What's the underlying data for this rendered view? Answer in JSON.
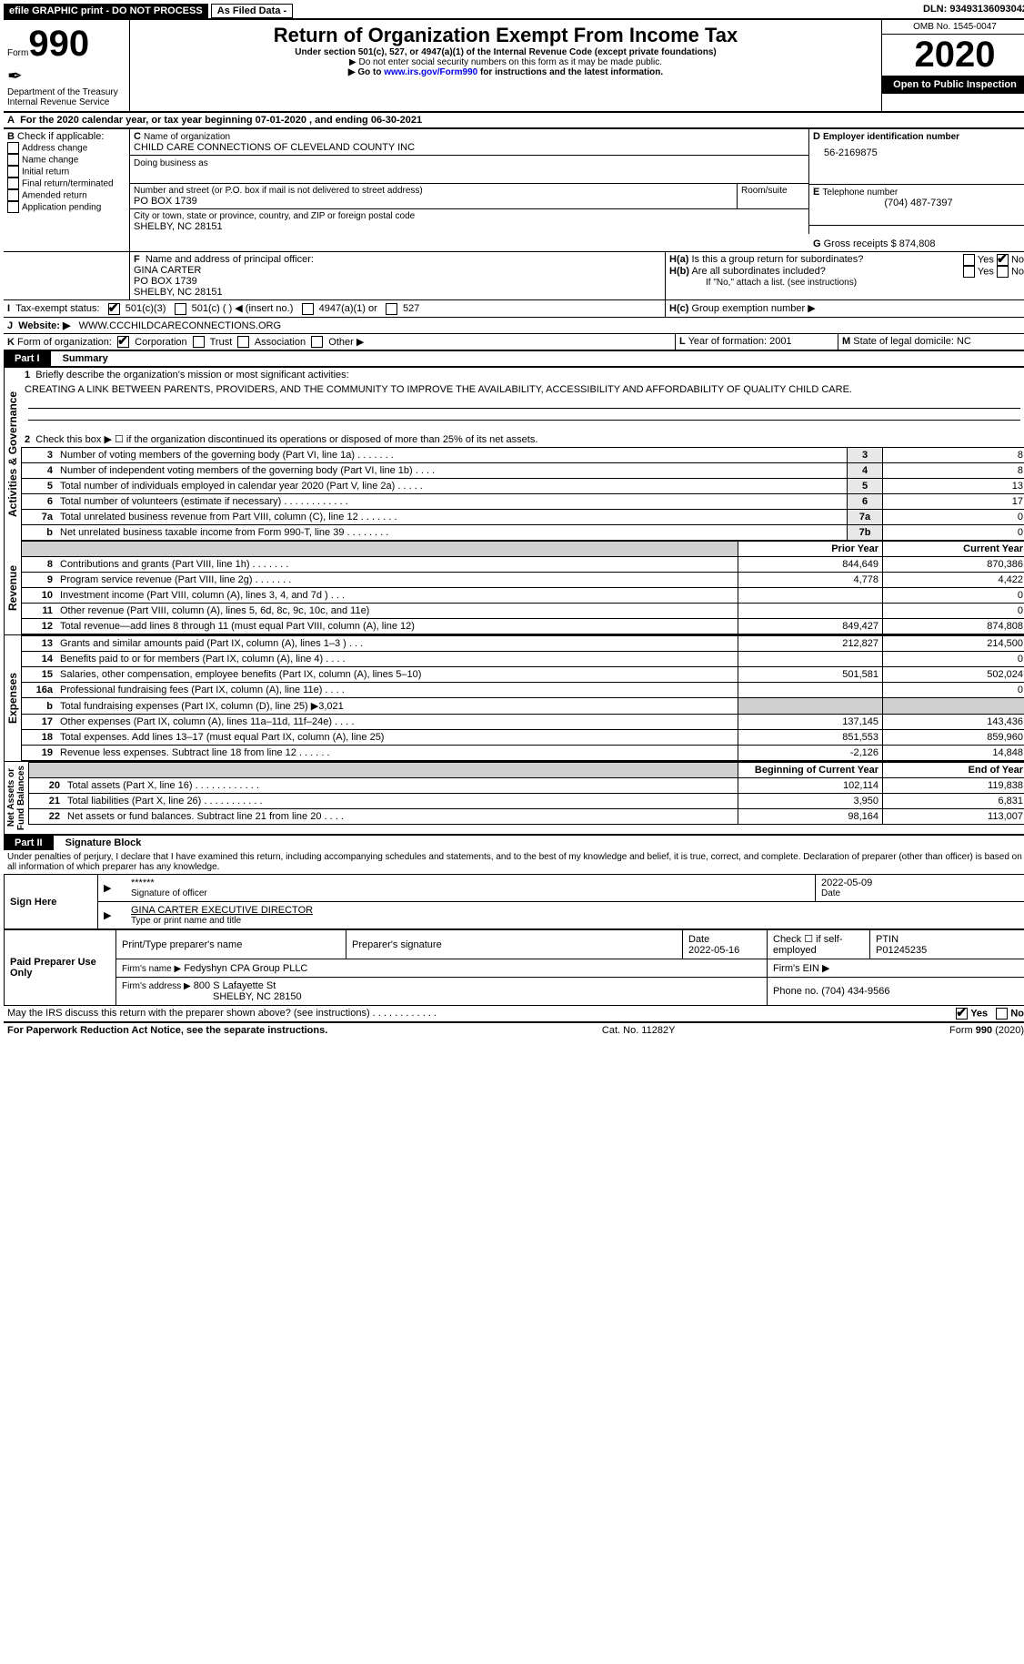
{
  "top": {
    "efile": "efile GRAPHIC print - DO NOT PROCESS",
    "asfiled": "As Filed Data -",
    "dln_label": "DLN:",
    "dln": "93493136093042"
  },
  "header": {
    "form_prefix": "Form",
    "form_no": "990",
    "dept": "Department of the Treasury\nInternal Revenue Service",
    "title": "Return of Organization Exempt From Income Tax",
    "sub1": "Under section 501(c), 527, or 4947(a)(1) of the Internal Revenue Code (except private foundations)",
    "sub2": "▶ Do not enter social security numbers on this form as it may be made public.",
    "sub3_pre": "▶ Go to ",
    "sub3_link": "www.irs.gov/Form990",
    "sub3_post": " for instructions and the latest information.",
    "omb": "OMB No. 1545-0047",
    "year": "2020",
    "inspect": "Open to Public Inspection"
  },
  "A": {
    "text": "For the 2020 calendar year, or tax year beginning 07-01-2020  , and ending 06-30-2021"
  },
  "B": {
    "label": "Check if applicable:",
    "items": [
      "Address change",
      "Name change",
      "Initial return",
      "Final return/terminated",
      "Amended return",
      "Application pending"
    ]
  },
  "C": {
    "name_label": "Name of organization",
    "name": "CHILD CARE CONNECTIONS OF CLEVELAND COUNTY INC",
    "dba_label": "Doing business as",
    "dba": "",
    "street_label": "Number and street (or P.O. box if mail is not delivered to street address)",
    "room_label": "Room/suite",
    "street": "PO BOX 1739",
    "city_label": "City or town, state or province, country, and ZIP or foreign postal code",
    "city": "SHELBY, NC  28151"
  },
  "D": {
    "label": "Employer identification number",
    "val": "56-2169875"
  },
  "E": {
    "label": "Telephone number",
    "val": "(704) 487-7397"
  },
  "G": {
    "label": "Gross receipts $",
    "val": "874,808"
  },
  "F": {
    "label": "Name and address of principal officer:",
    "lines": [
      "GINA CARTER",
      "PO BOX 1739",
      "SHELBY, NC  28151"
    ]
  },
  "H": {
    "a": "Is this a group return for subordinates?",
    "a_yes": "Yes",
    "a_no": "No",
    "b": "Are all subordinates included?",
    "b_yes": "Yes",
    "b_no": "No",
    "b_note": "If \"No,\" attach a list. (see instructions)",
    "c": "Group exemption number ▶"
  },
  "I": {
    "label": "Tax-exempt status:",
    "opts": [
      "501(c)(3)",
      "501(c) (  ) ◀ (insert no.)",
      "4947(a)(1) or",
      "527"
    ]
  },
  "J": {
    "label": "Website: ▶",
    "val": "WWW.CCCHILDCARECONNECTIONS.ORG"
  },
  "K": {
    "label": "Form of organization:",
    "opts": [
      "Corporation",
      "Trust",
      "Association",
      "Other ▶"
    ]
  },
  "L": {
    "label": "Year of formation:",
    "val": "2001"
  },
  "M": {
    "label": "State of legal domicile:",
    "val": "NC"
  },
  "partI": {
    "hdr": "Part I",
    "title": "Summary",
    "line1_label": "Briefly describe the organization's mission or most significant activities:",
    "line1_text": "CREATING A LINK BETWEEN PARENTS, PROVIDERS, AND THE COMMUNITY TO IMPROVE THE AVAILABILITY, ACCESSIBILITY AND AFFORDABILITY OF QUALITY CHILD CARE.",
    "line2": "Check this box ▶ ☐ if the organization discontinued its operations or disposed of more than 25% of its net assets.",
    "vlabels": {
      "ag": "Activities & Governance",
      "rev": "Revenue",
      "exp": "Expenses",
      "na": "Net Assets or\nFund Balances"
    },
    "rows_ag": [
      {
        "n": "3",
        "d": "Number of voting members of the governing body (Part VI, line 1a)  .   .   .   .   .   .   .",
        "box": "3",
        "v": "8"
      },
      {
        "n": "4",
        "d": "Number of independent voting members of the governing body (Part VI, line 1b)  .   .   .   .",
        "box": "4",
        "v": "8"
      },
      {
        "n": "5",
        "d": "Total number of individuals employed in calendar year 2020 (Part V, line 2a)  .   .   .   .   .",
        "box": "5",
        "v": "13"
      },
      {
        "n": "6",
        "d": "Total number of volunteers (estimate if necessary)  .   .   .   .   .   .   .   .   .   .   .   .",
        "box": "6",
        "v": "17"
      },
      {
        "n": "7a",
        "d": "Total unrelated business revenue from Part VIII, column (C), line 12  .   .   .   .   .   .   .",
        "box": "7a",
        "v": "0"
      },
      {
        "n": "b",
        "d": "Net unrelated business taxable income from Form 990-T, line 39  .   .   .   .   .   .   .   .",
        "box": "7b",
        "v": "0"
      }
    ],
    "col_hdr": {
      "py": "Prior Year",
      "cy": "Current Year",
      "boy": "Beginning of Current Year",
      "eoy": "End of Year"
    },
    "rows_rev": [
      {
        "n": "8",
        "d": "Contributions and grants (Part VIII, line 1h)  .   .   .   .   .   .   .",
        "py": "844,649",
        "cy": "870,386"
      },
      {
        "n": "9",
        "d": "Program service revenue (Part VIII, line 2g)  .   .   .   .   .   .   .",
        "py": "4,778",
        "cy": "4,422"
      },
      {
        "n": "10",
        "d": "Investment income (Part VIII, column (A), lines 3, 4, and 7d )  .   .   .",
        "py": "",
        "cy": "0"
      },
      {
        "n": "11",
        "d": "Other revenue (Part VIII, column (A), lines 5, 6d, 8c, 9c, 10c, and 11e)",
        "py": "",
        "cy": "0"
      },
      {
        "n": "12",
        "d": "Total revenue—add lines 8 through 11 (must equal Part VIII, column (A), line 12)",
        "py": "849,427",
        "cy": "874,808"
      }
    ],
    "rows_exp": [
      {
        "n": "13",
        "d": "Grants and similar amounts paid (Part IX, column (A), lines 1–3 )  .   .   .",
        "py": "212,827",
        "cy": "214,500"
      },
      {
        "n": "14",
        "d": "Benefits paid to or for members (Part IX, column (A), line 4)  .   .   .   .",
        "py": "",
        "cy": "0"
      },
      {
        "n": "15",
        "d": "Salaries, other compensation, employee benefits (Part IX, column (A), lines 5–10)",
        "py": "501,581",
        "cy": "502,024"
      },
      {
        "n": "16a",
        "d": "Professional fundraising fees (Part IX, column (A), line 11e)  .   .   .   .",
        "py": "",
        "cy": "0"
      },
      {
        "n": "b",
        "d": "Total fundraising expenses (Part IX, column (D), line 25) ▶3,021",
        "py": "__GRAY__",
        "cy": "__GRAY__"
      },
      {
        "n": "17",
        "d": "Other expenses (Part IX, column (A), lines 11a–11d, 11f–24e)   .   .   .   .",
        "py": "137,145",
        "cy": "143,436"
      },
      {
        "n": "18",
        "d": "Total expenses. Add lines 13–17 (must equal Part IX, column (A), line 25)",
        "py": "851,553",
        "cy": "859,960"
      },
      {
        "n": "19",
        "d": "Revenue less expenses. Subtract line 18 from line 12  .   .   .   .   .   .",
        "py": "-2,126",
        "cy": "14,848"
      }
    ],
    "rows_na": [
      {
        "n": "20",
        "d": "Total assets (Part X, line 16)  .   .   .   .   .   .   .   .   .   .   .   .",
        "py": "102,114",
        "cy": "119,838"
      },
      {
        "n": "21",
        "d": "Total liabilities (Part X, line 26)  .   .   .   .   .   .   .   .   .   .   .",
        "py": "3,950",
        "cy": "6,831"
      },
      {
        "n": "22",
        "d": "Net assets or fund balances. Subtract line 21 from line 20  .   .   .   .",
        "py": "98,164",
        "cy": "113,007"
      }
    ]
  },
  "partII": {
    "hdr": "Part II",
    "title": "Signature Block",
    "decl": "Under penalties of perjury, I declare that I have examined this return, including accompanying schedules and statements, and to the best of my knowledge and belief, it is true, correct, and complete. Declaration of preparer (other than officer) is based on all information of which preparer has any knowledge."
  },
  "sign": {
    "here": "Sign Here",
    "stars": "******",
    "sig_of": "Signature of officer",
    "date": "2022-05-09",
    "date_label": "Date",
    "name": "GINA CARTER EXECUTIVE DIRECTOR",
    "name_label": "Type or print name and title"
  },
  "prep": {
    "label": "Paid Preparer Use Only",
    "pt_name": "Print/Type preparer's name",
    "sig": "Preparer's signature",
    "date_label": "Date",
    "date": "2022-05-16",
    "check": "Check ☐ if self-employed",
    "ptin_label": "PTIN",
    "ptin": "P01245235",
    "firm_name_label": "Firm's name    ▶",
    "firm_name": "Fedyshyn CPA Group PLLC",
    "firm_ein_label": "Firm's EIN ▶",
    "firm_addr_label": "Firm's address ▶",
    "firm_addr": "800 S Lafayette St",
    "firm_city": "SHELBY, NC  28150",
    "phone_label": "Phone no.",
    "phone": "(704) 434-9566"
  },
  "footer": {
    "discuss": "May the IRS discuss this return with the preparer shown above? (see instructions)   .   .   .   .   .   .   .   .   .   .   .   .",
    "yes": "Yes",
    "no": "No",
    "pra": "For Paperwork Reduction Act Notice, see the separate instructions.",
    "cat": "Cat. No. 11282Y",
    "form": "Form 990 (2020)"
  }
}
